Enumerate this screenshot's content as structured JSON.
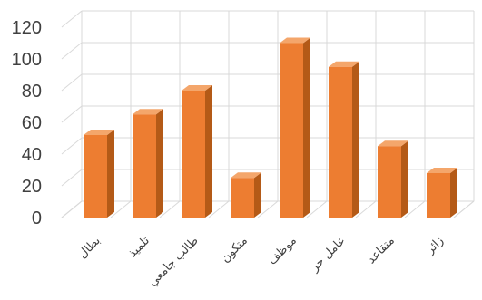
{
  "chart_data": {
    "type": "bar",
    "categories": [
      "بطال",
      "تلميذ",
      "طالب جامعي",
      "متكون",
      "موظف",
      "عامل حر",
      "متقاعد",
      "زائر"
    ],
    "values": [
      52,
      65,
      80,
      25,
      110,
      95,
      45,
      28
    ],
    "title": "",
    "xlabel": "",
    "ylabel": "",
    "ylim": [
      0,
      120
    ],
    "yticks": [
      0,
      20,
      40,
      60,
      80,
      100,
      120
    ],
    "grid": true,
    "legend": "none",
    "style": "3d-column",
    "colors": {
      "bar_front": "#ED7D31",
      "bar_side": "#B45A17",
      "bar_top": "#F4A66B",
      "grid": "#D9D9D9",
      "text": "#404040"
    }
  }
}
